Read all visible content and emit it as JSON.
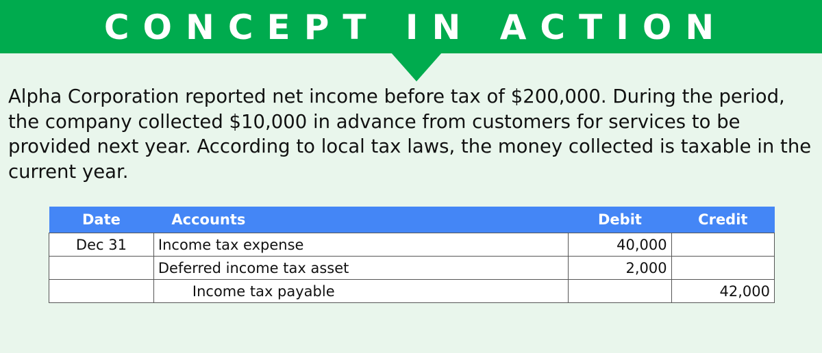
{
  "banner": {
    "title": "CONCEPT IN ACTION",
    "color": "#00ab4e"
  },
  "description": "Alpha Corporation reported net income before tax of $200,000. During the period, the company collected $10,000 in advance from customers for services to be provided next year. According to local tax laws, the money collected is taxable in the current year.",
  "table": {
    "header_color": "#4486f6",
    "headers": {
      "date": "Date",
      "accounts": "Accounts",
      "debit": "Debit",
      "credit": "Credit"
    },
    "rows": [
      {
        "date": "Dec 31",
        "account": "Income tax expense",
        "debit": "40,000",
        "credit": ""
      },
      {
        "date": "",
        "account": "Deferred income tax asset",
        "debit": "2,000",
        "credit": ""
      },
      {
        "date": "",
        "account": "Income tax payable",
        "debit": "",
        "credit": "42,000"
      }
    ]
  }
}
